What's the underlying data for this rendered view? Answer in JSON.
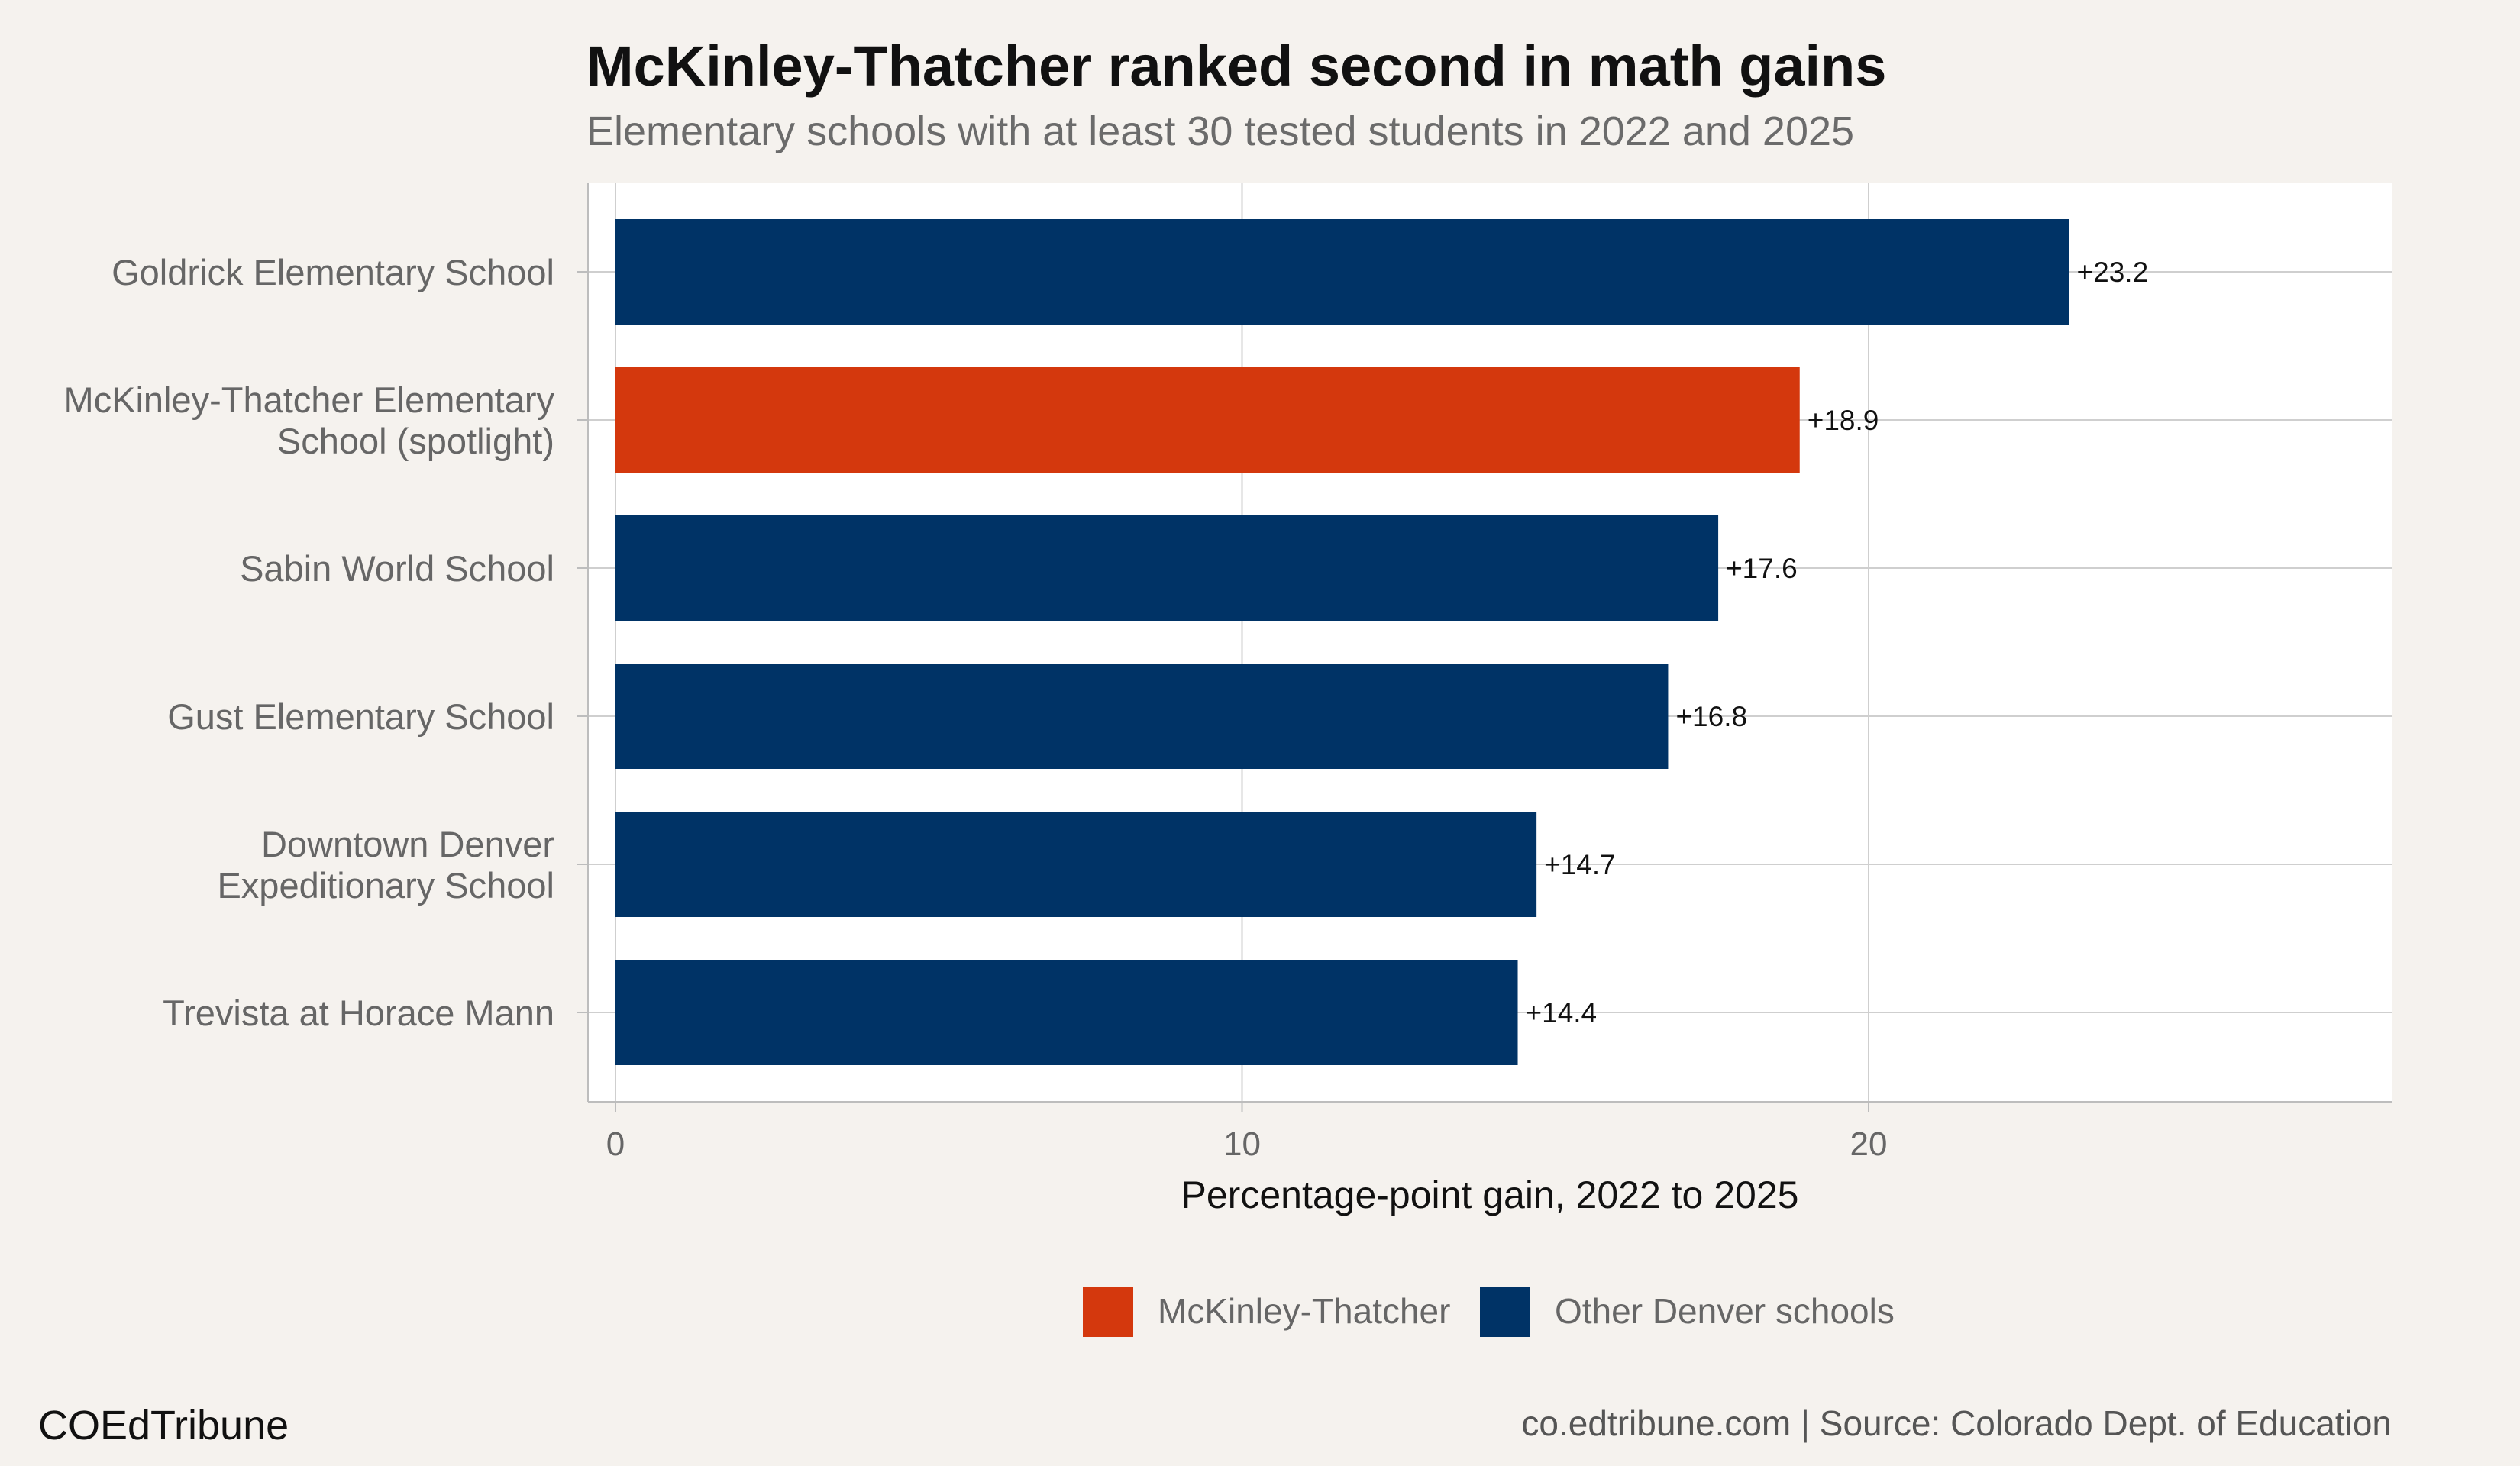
{
  "header": {
    "title": "McKinley-Thatcher ranked second in math gains",
    "subtitle": "Elementary schools with at least 30 tested students in 2022 and 2025"
  },
  "footer": {
    "brand": "COEdTribune",
    "source": "co.edtribune.com | Source: Colorado Dept. of Education"
  },
  "colors": {
    "highlight": "#d4380d",
    "other": "#003366",
    "panel": "#ffffff",
    "grid": "#cfcfcf",
    "background": "#f5f2ee"
  },
  "chart_data": {
    "type": "bar",
    "orientation": "horizontal",
    "title": "McKinley-Thatcher ranked second in math gains",
    "subtitle": "Elementary schools with at least 30 tested students in 2022 and 2025",
    "xlabel": "Percentage-point gain, 2022 to 2025",
    "ylabel": "",
    "xlim": [
      0,
      28
    ],
    "xticks": [
      0,
      10,
      20
    ],
    "grid": true,
    "legend_position": "bottom",
    "legend": [
      {
        "name": "McKinley-Thatcher",
        "color": "#d4380d"
      },
      {
        "name": "Other Denver schools",
        "color": "#003366"
      }
    ],
    "categories": [
      [
        "Goldrick Elementary School"
      ],
      [
        "McKinley-Thatcher Elementary",
        "School (spotlight)"
      ],
      [
        "Sabin World School"
      ],
      [
        "Gust Elementary School"
      ],
      [
        "Downtown Denver",
        "Expeditionary School"
      ],
      [
        "Trevista at Horace Mann"
      ]
    ],
    "values": [
      23.2,
      18.9,
      17.6,
      16.8,
      14.7,
      14.4
    ],
    "labels": [
      "+23.2",
      "+18.9",
      "+17.6",
      "+16.8",
      "+14.7",
      "+14.4"
    ],
    "groups": [
      "Other Denver schools",
      "McKinley-Thatcher",
      "Other Denver schools",
      "Other Denver schools",
      "Other Denver schools",
      "Other Denver schools"
    ]
  }
}
